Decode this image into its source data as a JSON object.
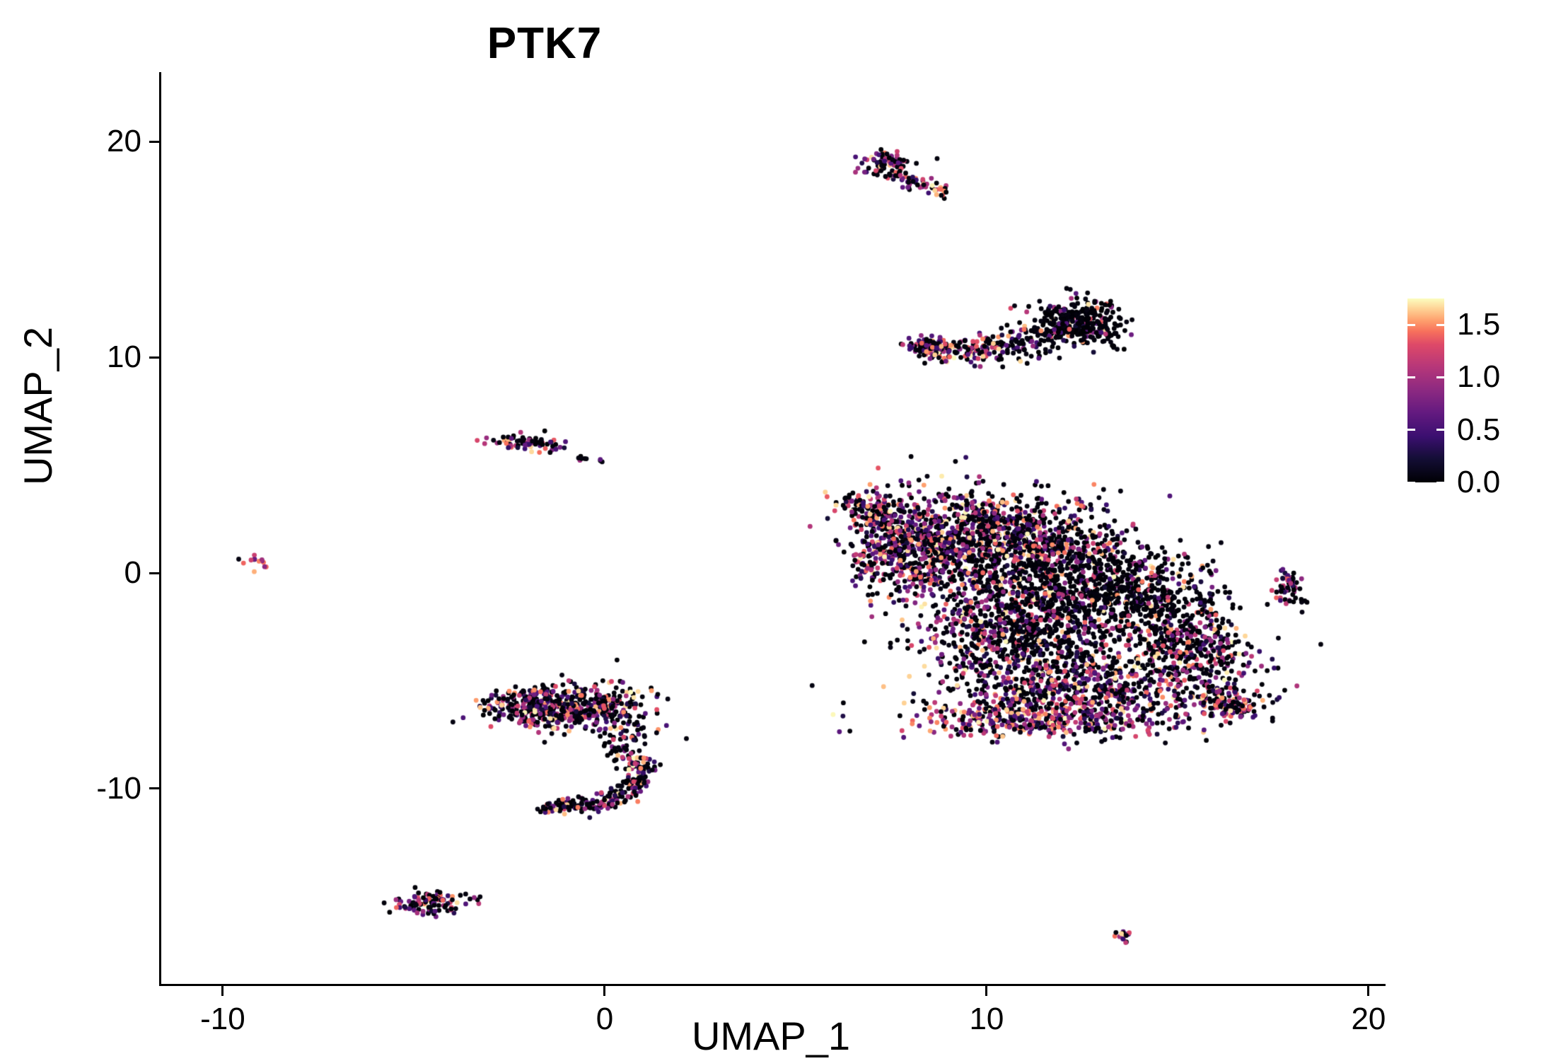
{
  "title": "PTK7",
  "axes": {
    "x_label": "UMAP_1",
    "y_label": "UMAP_2",
    "x_ticks": [
      -10,
      0,
      10,
      20
    ],
    "y_ticks": [
      -10,
      0,
      10,
      20
    ]
  },
  "colorbar": {
    "max": 1.75,
    "min": 0,
    "ticks": [
      {
        "value": 1.5,
        "label": "1.5"
      },
      {
        "value": 1.0,
        "label": "1.0"
      },
      {
        "value": 0.5,
        "label": "0.5"
      },
      {
        "value": 0.0,
        "label": "0.0"
      }
    ]
  },
  "chart_data": {
    "type": "scatter",
    "title": "PTK7",
    "xlabel": "UMAP_1",
    "ylabel": "UMAP_2",
    "xlim": [
      -11.61,
      20.39
    ],
    "ylim": [
      -19.05,
      23.15
    ],
    "grid": false,
    "legend_position": "right",
    "colormap": "magma",
    "color_range": [
      0,
      1.75
    ],
    "point_radius_px": 3.4,
    "colormap_stops": [
      [
        0.0,
        "#000004"
      ],
      [
        0.13,
        "#140e36"
      ],
      [
        0.25,
        "#3b0f70"
      ],
      [
        0.38,
        "#641a80"
      ],
      [
        0.5,
        "#8c2981"
      ],
      [
        0.63,
        "#b73779"
      ],
      [
        0.75,
        "#de4968"
      ],
      [
        0.82,
        "#f7705c"
      ],
      [
        0.88,
        "#fe9f6d"
      ],
      [
        0.94,
        "#fecf92"
      ],
      [
        1.0,
        "#fcfdbf"
      ]
    ],
    "clusters": [
      {
        "name": "top-streak-blob",
        "shape": "blob",
        "cx": 7.4,
        "cy": 18.95,
        "sx": 0.32,
        "sy": 0.4,
        "rot": -40,
        "n": 85,
        "p0": 0.45,
        "pow": 1.05
      },
      {
        "name": "top-streak-tail",
        "shape": "streak",
        "x1": 7.7,
        "y1": 18.45,
        "x2": 8.8,
        "y2": 17.6,
        "w": 0.15,
        "n": 55,
        "p0": 0.45,
        "pow": 1.0
      },
      {
        "name": "crescent-left-clump",
        "shape": "blob",
        "cx": 8.5,
        "cy": 10.5,
        "sx": 0.35,
        "sy": 0.22,
        "rot": -10,
        "n": 90,
        "p0": 0.4,
        "pow": 1.0
      },
      {
        "name": "crescent-arc",
        "shape": "arc",
        "x1": 8.3,
        "y1": 10.5,
        "cx": 10.9,
        "cy": 9.6,
        "x2": 13.15,
        "y2": 12.55,
        "w1": 0.25,
        "w2": 0.5,
        "n": 320,
        "p0": 0.4,
        "p0b": 0.85,
        "pow": 1.1
      },
      {
        "name": "crescent-right-clump",
        "shape": "blob",
        "cx": 12.35,
        "cy": 11.55,
        "sx": 0.65,
        "sy": 0.45,
        "rot": -35,
        "n": 230,
        "p0": 0.85,
        "pow": 1.2
      },
      {
        "name": "left-mid",
        "shape": "blob",
        "cx": -2.05,
        "cy": 6.05,
        "sx": 0.5,
        "sy": 0.2,
        "rot": -8,
        "n": 78,
        "p0": 0.45,
        "pow": 1.05
      },
      {
        "name": "left-mid-speck-1",
        "shape": "blob",
        "cx": -0.6,
        "cy": 5.3,
        "sx": 0.1,
        "sy": 0.07,
        "n": 6,
        "p0": 0.6,
        "pow": 1.0
      },
      {
        "name": "left-mid-speck-2",
        "shape": "blob",
        "cx": -0.15,
        "cy": 5.2,
        "sx": 0.05,
        "sy": 0.05,
        "n": 3,
        "p0": 0.7,
        "pow": 1.0
      },
      {
        "name": "far-left-speck",
        "shape": "blob",
        "cx": -9.1,
        "cy": 0.45,
        "sx": 0.17,
        "sy": 0.24,
        "rot": 20,
        "n": 13,
        "p0": 0.15,
        "pow": 0.8
      },
      {
        "name": "main-top-tip",
        "shape": "streak",
        "x1": 6.45,
        "y1": 3.45,
        "x2": 7.6,
        "y2": 2.3,
        "w": 0.3,
        "n": 90,
        "p0": 0.5,
        "pow": 1.1
      },
      {
        "name": "main-a",
        "shape": "blob",
        "cx": 7.7,
        "cy": 1.2,
        "sx": 0.75,
        "sy": 1.25,
        "n": 450,
        "p0": 0.4,
        "pow": 1.05
      },
      {
        "name": "main-b",
        "shape": "blob",
        "cx": 9.4,
        "cy": 1.6,
        "sx": 1.0,
        "sy": 1.25,
        "n": 550,
        "p0": 0.5,
        "pow": 1.1
      },
      {
        "name": "main-c",
        "shape": "blob",
        "cx": 11.3,
        "cy": 1.2,
        "sx": 1.3,
        "sy": 1.15,
        "n": 650,
        "p0": 0.55,
        "pow": 1.1
      },
      {
        "name": "main-d-dark",
        "shape": "blob",
        "cx": 12.5,
        "cy": -1.5,
        "sx": 1.6,
        "sy": 1.35,
        "n": 850,
        "p0": 0.75,
        "pow": 1.2
      },
      {
        "name": "main-e",
        "shape": "blob",
        "cx": 10.4,
        "cy": -3.1,
        "sx": 1.0,
        "sy": 1.25,
        "n": 450,
        "p0": 0.55,
        "pow": 1.1
      },
      {
        "name": "main-f",
        "shape": "blob",
        "cx": 12.6,
        "cy": -5.3,
        "sx": 1.9,
        "sy": 0.95,
        "n": 650,
        "p0": 0.5,
        "pow": 1.0
      },
      {
        "name": "main-bottom-band",
        "shape": "blob",
        "cx": 11.2,
        "cy": -6.8,
        "sx": 1.7,
        "sy": 0.42,
        "n": 380,
        "p0": 0.28,
        "pow": 0.85
      },
      {
        "name": "main-right-lobe",
        "shape": "blob",
        "cx": 15.4,
        "cy": -3.3,
        "sx": 0.85,
        "sy": 1.25,
        "n": 380,
        "p0": 0.6,
        "pow": 1.1
      },
      {
        "name": "main-right-tip",
        "shape": "blob",
        "cx": 16.3,
        "cy": -6.0,
        "sx": 0.55,
        "sy": 0.42,
        "n": 140,
        "p0": 0.35,
        "pow": 0.9
      },
      {
        "name": "main-sparse-dark",
        "shape": "blob",
        "cx": 13.9,
        "cy": -0.6,
        "sx": 1.0,
        "sy": 0.85,
        "n": 200,
        "p0": 0.85,
        "pow": 1.2
      },
      {
        "name": "right-small",
        "shape": "blob",
        "cx": 17.9,
        "cy": -0.75,
        "sx": 0.2,
        "sy": 0.42,
        "n": 55,
        "p0": 0.5,
        "pow": 1.1
      },
      {
        "name": "leftbottom-a",
        "shape": "blob",
        "cx": -1.5,
        "cy": -6.2,
        "sx": 0.8,
        "sy": 0.5,
        "n": 380,
        "p0": 0.5,
        "pow": 1.1
      },
      {
        "name": "leftbottom-b",
        "shape": "blob",
        "cx": 0.2,
        "cy": -6.2,
        "sx": 0.55,
        "sy": 0.6,
        "n": 170,
        "p0": 0.5,
        "pow": 1.1
      },
      {
        "name": "leftbottom-drip",
        "shape": "streak",
        "x1": 0.75,
        "y1": -7.0,
        "x2": 0.4,
        "y2": -8.6,
        "w": 0.32,
        "n": 55,
        "p0": 0.65,
        "pow": 1.1
      },
      {
        "name": "hook-arc",
        "shape": "arc",
        "x1": 1.0,
        "y1": -8.5,
        "cx": 0.95,
        "cy": -11.1,
        "x2": -1.8,
        "y2": -10.85,
        "w1": 0.2,
        "w2": 0.2,
        "n": 230,
        "p0": 0.5,
        "pow": 1.05
      },
      {
        "name": "bottom-left-small",
        "shape": "blob",
        "cx": -4.55,
        "cy": -15.3,
        "sx": 0.52,
        "sy": 0.25,
        "rot": 10,
        "n": 105,
        "p0": 0.5,
        "pow": 1.15
      },
      {
        "name": "bottom-right-speck",
        "shape": "streak",
        "x1": 13.35,
        "y1": -16.6,
        "x2": 13.75,
        "y2": -17.0,
        "w": 0.1,
        "n": 16,
        "p0": 0.25,
        "pow": 0.8
      }
    ]
  }
}
